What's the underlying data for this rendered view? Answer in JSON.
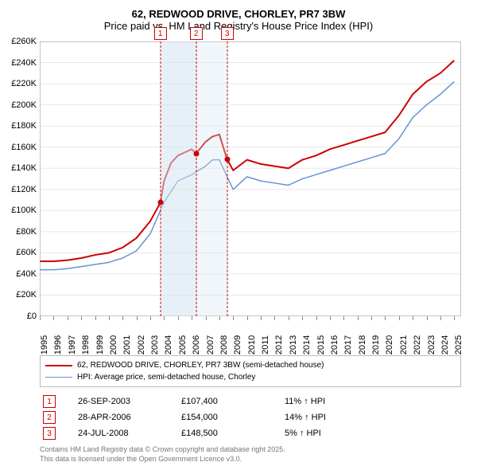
{
  "title_line1": "62, REDWOOD DRIVE, CHORLEY, PR7 3BW",
  "title_line2": "Price paid vs. HM Land Registry's House Price Index (HPI)",
  "y": {
    "min": 0,
    "max": 260,
    "ticks": [
      0,
      20,
      40,
      60,
      80,
      100,
      120,
      140,
      160,
      180,
      200,
      220,
      240,
      260
    ],
    "labels": [
      "£0",
      "£20K",
      "£40K",
      "£60K",
      "£80K",
      "£100K",
      "£120K",
      "£140K",
      "£160K",
      "£180K",
      "£200K",
      "£220K",
      "£240K",
      "£260K"
    ]
  },
  "x": {
    "min": 1995,
    "max": 2025.5,
    "ticks": [
      1995,
      1996,
      1997,
      1998,
      1999,
      2000,
      2001,
      2002,
      2003,
      2004,
      2005,
      2006,
      2007,
      2008,
      2009,
      2010,
      2011,
      2012,
      2013,
      2014,
      2015,
      2016,
      2017,
      2018,
      2019,
      2020,
      2021,
      2022,
      2023,
      2024,
      2025
    ],
    "labels": [
      "1995",
      "1996",
      "1997",
      "1998",
      "1999",
      "2000",
      "2001",
      "2002",
      "2003",
      "2004",
      "2005",
      "2006",
      "2007",
      "2008",
      "2009",
      "2010",
      "2011",
      "2012",
      "2013",
      "2014",
      "2015",
      "2016",
      "2017",
      "2018",
      "2019",
      "2020",
      "2021",
      "2022",
      "2023",
      "2024",
      "2025"
    ]
  },
  "series": [
    {
      "name": "62, REDWOOD DRIVE, CHORLEY, PR7 3BW (semi-detached house)",
      "color": "#cc0000",
      "width": 2,
      "points": [
        [
          1995,
          52
        ],
        [
          1996,
          52
        ],
        [
          1997,
          53
        ],
        [
          1998,
          55
        ],
        [
          1999,
          58
        ],
        [
          2000,
          60
        ],
        [
          2001,
          65
        ],
        [
          2002,
          74
        ],
        [
          2003,
          90
        ],
        [
          2003.73,
          107.4
        ],
        [
          2004,
          128
        ],
        [
          2004.5,
          145
        ],
        [
          2005,
          152
        ],
        [
          2006,
          158
        ],
        [
          2006.32,
          154
        ],
        [
          2007,
          165
        ],
        [
          2007.5,
          170
        ],
        [
          2008,
          172
        ],
        [
          2008.56,
          148.5
        ],
        [
          2009,
          138
        ],
        [
          2010,
          148
        ],
        [
          2011,
          144
        ],
        [
          2012,
          142
        ],
        [
          2013,
          140
        ],
        [
          2014,
          148
        ],
        [
          2015,
          152
        ],
        [
          2016,
          158
        ],
        [
          2017,
          162
        ],
        [
          2018,
          166
        ],
        [
          2019,
          170
        ],
        [
          2020,
          174
        ],
        [
          2021,
          190
        ],
        [
          2022,
          210
        ],
        [
          2023,
          222
        ],
        [
          2024,
          230
        ],
        [
          2025,
          242
        ]
      ]
    },
    {
      "name": "HPI: Average price, semi-detached house, Chorley",
      "color": "#6694d1",
      "width": 1.5,
      "points": [
        [
          1995,
          44
        ],
        [
          1996,
          44
        ],
        [
          1997,
          45
        ],
        [
          1998,
          47
        ],
        [
          1999,
          49
        ],
        [
          2000,
          51
        ],
        [
          2001,
          55
        ],
        [
          2002,
          62
        ],
        [
          2003,
          78
        ],
        [
          2004,
          108
        ],
        [
          2005,
          128
        ],
        [
          2006,
          134
        ],
        [
          2007,
          142
        ],
        [
          2007.5,
          148
        ],
        [
          2008,
          148
        ],
        [
          2008.56,
          132
        ],
        [
          2009,
          120
        ],
        [
          2010,
          132
        ],
        [
          2011,
          128
        ],
        [
          2012,
          126
        ],
        [
          2013,
          124
        ],
        [
          2014,
          130
        ],
        [
          2015,
          134
        ],
        [
          2016,
          138
        ],
        [
          2017,
          142
        ],
        [
          2018,
          146
        ],
        [
          2019,
          150
        ],
        [
          2020,
          154
        ],
        [
          2021,
          168
        ],
        [
          2022,
          188
        ],
        [
          2023,
          200
        ],
        [
          2024,
          210
        ],
        [
          2025,
          222
        ]
      ]
    }
  ],
  "shaded": [
    [
      2003.73,
      2006.32
    ],
    [
      2006.32,
      2008.56
    ]
  ],
  "markers": [
    {
      "n": "1",
      "x": 2003.73,
      "y": 107.4
    },
    {
      "n": "2",
      "x": 2006.32,
      "y": 154
    },
    {
      "n": "3",
      "x": 2008.56,
      "y": 148.5
    }
  ],
  "events": [
    {
      "n": "1",
      "date": "26-SEP-2003",
      "price": "£107,400",
      "pct": "11% ↑ HPI"
    },
    {
      "n": "2",
      "date": "28-APR-2006",
      "price": "£154,000",
      "pct": "14% ↑ HPI"
    },
    {
      "n": "3",
      "date": "24-JUL-2008",
      "price": "£148,500",
      "pct": "5% ↑ HPI"
    }
  ],
  "footer_line1": "Contains HM Land Registry data © Crown copyright and database right 2025.",
  "footer_line2": "This data is licensed under the Open Government Licence v3.0.",
  "colors": {
    "marker": "#cc0000",
    "shade": "#d6e4f0",
    "grid": "#e8e8e8"
  }
}
